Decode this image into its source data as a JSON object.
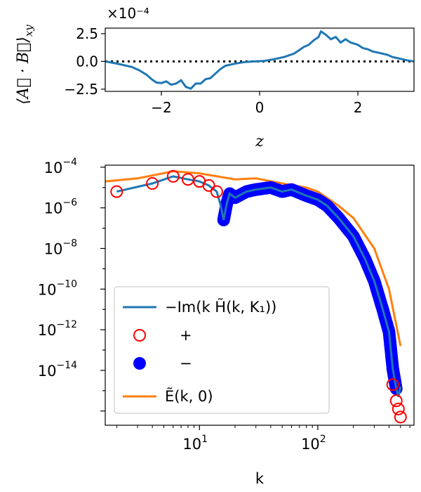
{
  "chart_data": [
    {
      "type": "line",
      "name": "top-panel",
      "offset_label": "×10⁻⁴",
      "ylabel": "⟨A⃗ · B⃗⟩",
      "ylabel_sub": "xy",
      "xlabel": "z",
      "xlim": [
        -3.1416,
        3.1416
      ],
      "ylim": [
        -2.7,
        3.0
      ],
      "xticks": [
        {
          "v": -2,
          "label": "−2"
        },
        {
          "v": 0,
          "label": "0"
        },
        {
          "v": 2,
          "label": "2"
        }
      ],
      "yticks": [
        {
          "v": 2.5,
          "label": "2.5"
        },
        {
          "v": 0,
          "label": "0.0"
        },
        {
          "v": -2.5,
          "label": "−2.5"
        }
      ],
      "reference_line": {
        "y": 0,
        "style": "dotted",
        "color": "#000000"
      },
      "series": [
        {
          "name": "<A·B>_xy",
          "color": "#1f77b4",
          "x": [
            -3.14,
            -2.9,
            -2.6,
            -2.45,
            -2.3,
            -2.2,
            -2.1,
            -2.0,
            -1.9,
            -1.8,
            -1.7,
            -1.6,
            -1.5,
            -1.4,
            -1.3,
            -1.2,
            -1.1,
            -1.0,
            -0.9,
            -0.8,
            -0.7,
            -0.6,
            -0.5,
            -0.3,
            -0.1,
            0.1,
            0.3,
            0.5,
            0.7,
            0.8,
            0.9,
            1.0,
            1.1,
            1.2,
            1.25,
            1.35,
            1.45,
            1.55,
            1.65,
            1.75,
            1.85,
            2.0,
            2.1,
            2.2,
            2.3,
            2.4,
            2.5,
            2.6,
            2.7,
            2.8,
            2.9,
            3.0,
            3.14
          ],
          "y": [
            0.0,
            -0.2,
            -0.5,
            -0.8,
            -1.2,
            -1.6,
            -1.9,
            -1.95,
            -1.8,
            -2.1,
            -2.0,
            -1.7,
            -2.3,
            -2.45,
            -2.0,
            -2.0,
            -1.6,
            -1.5,
            -1.1,
            -0.7,
            -0.4,
            -0.3,
            -0.2,
            -0.05,
            0.0,
            0.05,
            0.2,
            0.4,
            0.7,
            1.0,
            1.3,
            1.5,
            1.9,
            2.2,
            2.7,
            2.4,
            2.0,
            2.2,
            1.7,
            2.0,
            1.7,
            1.5,
            1.2,
            1.1,
            0.9,
            0.8,
            0.7,
            0.6,
            0.4,
            0.3,
            0.2,
            0.1,
            0.0
          ]
        }
      ]
    },
    {
      "type": "line",
      "name": "bottom-panel",
      "xscale": "log",
      "yscale": "log",
      "xlabel": "k",
      "xlim": [
        1.6,
        650
      ],
      "ylim_exp": [
        -16.7,
        -3.9
      ],
      "xticks": [
        {
          "v": 10,
          "base": "10",
          "exp": "1"
        },
        {
          "v": 100,
          "base": "10",
          "exp": "2"
        }
      ],
      "yticks": [
        {
          "exp": -4,
          "base": "10",
          "label_exp": "−4"
        },
        {
          "exp": -6,
          "base": "10",
          "label_exp": "−6"
        },
        {
          "exp": -8,
          "base": "10",
          "label_exp": "−8"
        },
        {
          "exp": -10,
          "base": "10",
          "label_exp": "−10"
        },
        {
          "exp": -12,
          "base": "10",
          "label_exp": "−12"
        },
        {
          "exp": -14,
          "base": "10",
          "label_exp": "−14"
        }
      ],
      "series": [
        {
          "name": "E(k,0)",
          "color": "#ff7f0e",
          "x": [
            1.6,
            3,
            6,
            10,
            20,
            30,
            50,
            80,
            100,
            150,
            200,
            300,
            400,
            500
          ],
          "log10y": [
            -4.7,
            -4.55,
            -4.2,
            -4.3,
            -4.6,
            -4.55,
            -4.8,
            -5.0,
            -5.2,
            -5.9,
            -6.5,
            -8.0,
            -10.0,
            -12.8
          ]
        },
        {
          "name": "-Im(kH(k,K1))",
          "color": "#1f77b4",
          "x": [
            2,
            4,
            6,
            8,
            10,
            12,
            14,
            15,
            16,
            17,
            18,
            20,
            25,
            30,
            40,
            50,
            60,
            80,
            100,
            120,
            150,
            200,
            250,
            300,
            350,
            400,
            430,
            460,
            480,
            500
          ],
          "log10y": [
            -5.2,
            -4.8,
            -4.45,
            -4.6,
            -4.7,
            -4.9,
            -5.2,
            -5.8,
            -6.6,
            -5.8,
            -5.3,
            -5.5,
            -5.2,
            -5.1,
            -5.0,
            -5.2,
            -5.1,
            -5.4,
            -5.6,
            -5.9,
            -6.5,
            -7.4,
            -8.5,
            -9.6,
            -10.9,
            -12.1,
            -13.9,
            -14.9,
            -15.3,
            -14.8
          ]
        },
        {
          "name": "+",
          "marker": "open-circle",
          "color": "#ff0000",
          "x": [
            2,
            4,
            6,
            8,
            10,
            12,
            14,
            430,
            460,
            480,
            500
          ],
          "log10y": [
            -5.2,
            -4.8,
            -4.45,
            -4.6,
            -4.7,
            -4.9,
            -5.2,
            -14.7,
            -15.5,
            -15.9,
            -16.3
          ]
        },
        {
          "name": "−",
          "marker": "filled-circle",
          "color": "#0000ff",
          "x": [
            16,
            17,
            18,
            20,
            25,
            30,
            40,
            50,
            60,
            80,
            100,
            120,
            150,
            200,
            250,
            300,
            350,
            400,
            430,
            460
          ],
          "log10y": [
            -6.6,
            -5.8,
            -5.3,
            -5.5,
            -5.2,
            -5.1,
            -5.0,
            -5.2,
            -5.1,
            -5.4,
            -5.6,
            -5.9,
            -6.5,
            -7.4,
            -8.5,
            -9.6,
            -10.9,
            -12.1,
            -13.9,
            -14.9
          ]
        }
      ],
      "legend": {
        "placement": "lower-left",
        "entries": [
          {
            "label": "−Im(k H̃(k, K₁))",
            "kind": "line",
            "color": "#1f77b4"
          },
          {
            "label": "+",
            "kind": "open-circle",
            "color": "#ff0000"
          },
          {
            "label": "−",
            "kind": "filled-circle",
            "color": "#0000ff"
          },
          {
            "label": "Ẽ(k, 0)",
            "kind": "line",
            "color": "#ff7f0e"
          }
        ]
      }
    }
  ]
}
